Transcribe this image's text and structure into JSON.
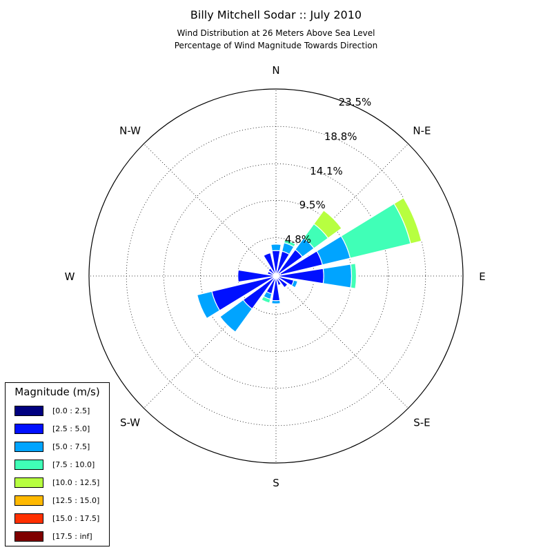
{
  "title": "Billy Mitchell Sodar :: July 2010",
  "subtitle_line1": "Wind Distribution at 26 Meters Above Sea Level",
  "subtitle_line2": "Percentage of Wind Magnitude Towards Direction",
  "legend": {
    "title": "Magnitude (m/s)",
    "items": [
      {
        "label": "[0.0 : 2.5]",
        "color": "#00007f"
      },
      {
        "label": "[2.5 : 5.0]",
        "color": "#0010ff"
      },
      {
        "label": "[5.0 : 7.5]",
        "color": "#00a4ff"
      },
      {
        "label": "[7.5 : 10.0]",
        "color": "#40ffb7"
      },
      {
        "label": "[10.0 : 12.5]",
        "color": "#b7ff40"
      },
      {
        "label": "[12.5 : 15.0]",
        "color": "#ffb900"
      },
      {
        "label": "[15.0 : 17.5]",
        "color": "#ff3000"
      },
      {
        "label": "[17.5 : inf]",
        "color": "#7f0000"
      }
    ]
  },
  "chart_data": {
    "type": "wind_rose",
    "direction_labels": [
      "N",
      "N-E",
      "E",
      "S-E",
      "S",
      "S-W",
      "W",
      "N-W"
    ],
    "radial_tick_labels": [
      "4.8%",
      "9.5%",
      "14.1%",
      "18.8%",
      "23.5%"
    ],
    "radial_ticks": [
      4.8,
      9.5,
      14.1,
      18.8,
      23.5
    ],
    "r_max": 23.5,
    "grid": true,
    "legend_position": "lower-left",
    "bin_labels": [
      "[0.0 : 2.5]",
      "[2.5 : 5.0]",
      "[5.0 : 7.5]",
      "[7.5 : 10.0]",
      "[10.0 : 12.5]",
      "[12.5 : 15.0]",
      "[15.0 : 17.5]",
      "[17.5 : inf]"
    ],
    "sectors": [
      {
        "direction_deg": 0,
        "cumulative": [
          0.3,
          3.2,
          4.0
        ]
      },
      {
        "direction_deg": 22.5,
        "cumulative": [
          0.3,
          3.2,
          4.3,
          4.7
        ]
      },
      {
        "direction_deg": 45,
        "cumulative": [
          0.4,
          4.1,
          5.9,
          8.1,
          10.2
        ]
      },
      {
        "direction_deg": 67.5,
        "cumulative": [
          0.6,
          6.0,
          9.6,
          17.4,
          18.8
        ]
      },
      {
        "direction_deg": 90,
        "cumulative": [
          0.4,
          6.0,
          9.5,
          10.1
        ]
      },
      {
        "direction_deg": 112.5,
        "cumulative": [
          0.3,
          2.3,
          2.8
        ]
      },
      {
        "direction_deg": 135,
        "cumulative": [
          0.3,
          1.8
        ]
      },
      {
        "direction_deg": 157.5,
        "cumulative": [
          0.3,
          1.2
        ]
      },
      {
        "direction_deg": 180,
        "cumulative": [
          0.3,
          3.1,
          3.5
        ]
      },
      {
        "direction_deg": 202.5,
        "cumulative": [
          0.3,
          2.3,
          3.0,
          3.5
        ]
      },
      {
        "direction_deg": 225,
        "cumulative": [
          0.3,
          5.1,
          8.7
        ]
      },
      {
        "direction_deg": 247.5,
        "cumulative": [
          0.3,
          8.3,
          10.2
        ]
      },
      {
        "direction_deg": 270,
        "cumulative": [
          0.3,
          4.8
        ]
      },
      {
        "direction_deg": 292.5,
        "cumulative": [
          0.3,
          1.1
        ]
      },
      {
        "direction_deg": 315,
        "cumulative": [
          0.3,
          1.2
        ]
      },
      {
        "direction_deg": 337.5,
        "cumulative": [
          0.3,
          3.0
        ]
      }
    ]
  }
}
